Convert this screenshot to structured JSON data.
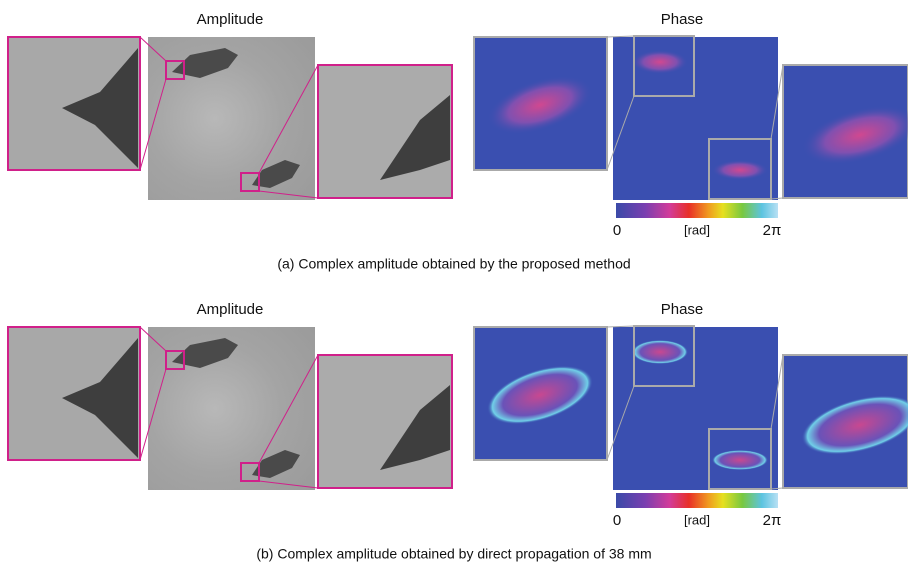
{
  "panels": [
    {
      "amplitude_label": "Amplitude",
      "phase_label": "Phase",
      "colorbar": {
        "min_label": "0",
        "unit_label": "[rad]",
        "max_label": "2π"
      },
      "caption": "(a) Complex amplitude obtained by the proposed method"
    },
    {
      "amplitude_label": "Amplitude",
      "phase_label": "Phase",
      "colorbar": {
        "min_label": "0",
        "unit_label": "[rad]",
        "max_label": "2π"
      },
      "caption": "(b) Complex amplitude obtained by direct propagation of 38 mm"
    }
  ]
}
